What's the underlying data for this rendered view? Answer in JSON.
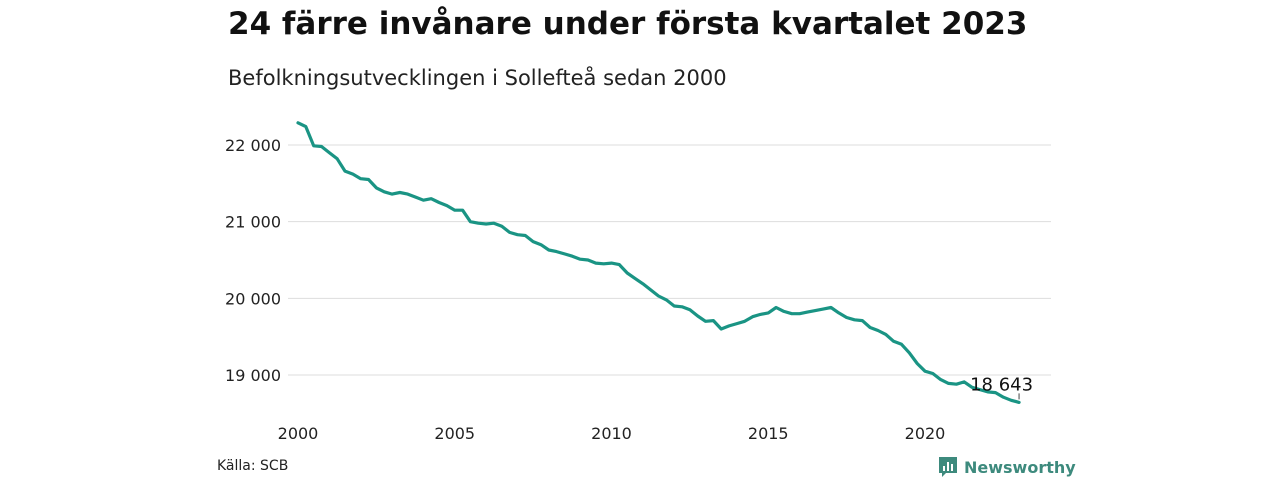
{
  "title": "24 färre invånare under första kvartalet 2023",
  "subtitle": "Befolkningsutvecklingen i Sollefteå sedan 2000",
  "source": "Källa: SCB",
  "brand": {
    "name": "Newsworthy",
    "icon": "newsworthy-logo-icon",
    "color": "#3d8a7d"
  },
  "chart_data": {
    "type": "line",
    "xlim": [
      2000,
      2023.25
    ],
    "ylim": [
      18450,
      22450
    ],
    "x_ticks": [
      2000,
      2005,
      2010,
      2015,
      2020
    ],
    "x_tick_labels": [
      "2000",
      "2005",
      "2010",
      "2015",
      "2020"
    ],
    "y_ticks": [
      19000,
      20000,
      21000,
      22000
    ],
    "y_tick_labels": [
      "19 000",
      "20 000",
      "21 000",
      "22 000"
    ],
    "grid": true,
    "line_color": "#1a9484",
    "end_label": "18 643",
    "series": [
      {
        "x": [
          2000.0,
          2000.25,
          2000.5,
          2000.75,
          2001.0,
          2001.25,
          2001.5,
          2001.75,
          2002.0,
          2002.25,
          2002.5,
          2002.75,
          2003.0,
          2003.25,
          2003.5,
          2003.75,
          2004.0,
          2004.25,
          2004.5,
          2004.75,
          2005.0,
          2005.25,
          2005.5,
          2005.75,
          2006.0,
          2006.25,
          2006.5,
          2006.75,
          2007.0,
          2007.25,
          2007.5,
          2007.75,
          2008.0,
          2008.25,
          2008.5,
          2008.75,
          2009.0,
          2009.25,
          2009.5,
          2009.75,
          2010.0,
          2010.25,
          2010.5,
          2010.75,
          2011.0,
          2011.25,
          2011.5,
          2011.75,
          2012.0,
          2012.25,
          2012.5,
          2012.75,
          2013.0,
          2013.25,
          2013.5,
          2013.75,
          2014.0,
          2014.25,
          2014.5,
          2014.75,
          2015.0,
          2015.25,
          2015.5,
          2015.75,
          2016.0,
          2016.25,
          2016.5,
          2016.75,
          2017.0,
          2017.25,
          2017.5,
          2017.75,
          2018.0,
          2018.25,
          2018.5,
          2018.75,
          2019.0,
          2019.25,
          2019.5,
          2019.75,
          2020.0,
          2020.25,
          2020.5,
          2020.75,
          2021.0,
          2021.25,
          2021.5,
          2021.75,
          2022.0,
          2022.25,
          2022.5,
          2022.75,
          2023.0
        ],
        "values": [
          22290,
          22240,
          21990,
          21980,
          21900,
          21820,
          21660,
          21620,
          21560,
          21550,
          21440,
          21390,
          21360,
          21380,
          21360,
          21320,
          21280,
          21300,
          21250,
          21210,
          21150,
          21150,
          21000,
          20980,
          20970,
          20980,
          20940,
          20860,
          20830,
          20820,
          20740,
          20700,
          20630,
          20610,
          20580,
          20550,
          20510,
          20500,
          20460,
          20450,
          20460,
          20440,
          20330,
          20260,
          20190,
          20110,
          20030,
          19980,
          19900,
          19890,
          19850,
          19770,
          19700,
          19710,
          19600,
          19640,
          19670,
          19700,
          19760,
          19790,
          19810,
          19880,
          19830,
          19800,
          19800,
          19820,
          19840,
          19860,
          19880,
          19810,
          19750,
          19720,
          19710,
          19620,
          19580,
          19530,
          19440,
          19400,
          19290,
          19150,
          19050,
          19020,
          18940,
          18890,
          18880,
          18910,
          18840,
          18810,
          18780,
          18770,
          18710,
          18670,
          18643
        ]
      }
    ]
  }
}
